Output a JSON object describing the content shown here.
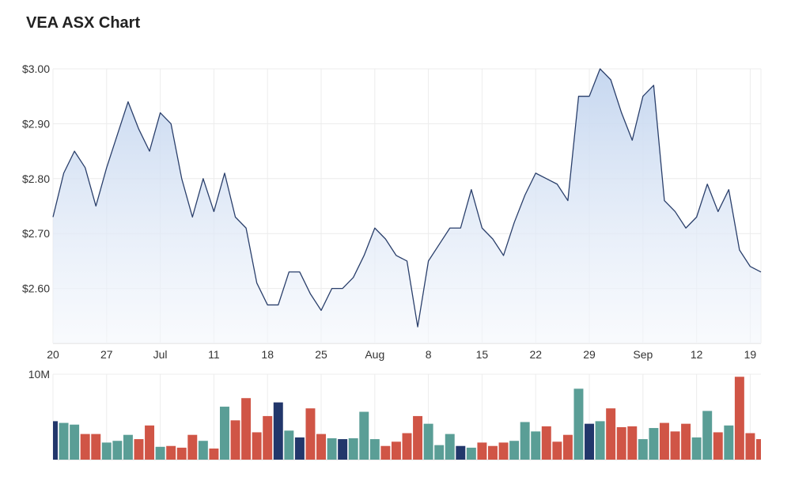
{
  "title": "VEA ASX Chart",
  "colors": {
    "line": "#2a3f6b",
    "area_top": "#c3d5ef",
    "area_bottom": "#f4f7fc",
    "grid": "#ececec",
    "up": "#5a9e96",
    "down": "#d05546",
    "neutral": "#22376b"
  },
  "chart_data": [
    {
      "type": "area",
      "name": "price",
      "ylim": [
        2.5,
        3.0
      ],
      "y_ticks": [
        "$3.00",
        "$2.90",
        "$2.80",
        "$2.70",
        "$2.60"
      ],
      "x_ticks": [
        "20",
        "27",
        "Jul",
        "11",
        "18",
        "25",
        "Aug",
        "8",
        "15",
        "22",
        "29",
        "Sep",
        "12",
        "19"
      ],
      "values": [
        2.73,
        2.81,
        2.85,
        2.82,
        2.75,
        2.82,
        2.88,
        2.94,
        2.89,
        2.85,
        2.92,
        2.9,
        2.8,
        2.73,
        2.8,
        2.74,
        2.81,
        2.73,
        2.71,
        2.61,
        2.57,
        2.57,
        2.63,
        2.63,
        2.59,
        2.56,
        2.6,
        2.6,
        2.62,
        2.66,
        2.71,
        2.69,
        2.66,
        2.65,
        2.53,
        2.65,
        2.68,
        2.71,
        2.71,
        2.78,
        2.71,
        2.69,
        2.66,
        2.72,
        2.77,
        2.81,
        2.8,
        2.79,
        2.76,
        2.95,
        2.95,
        3.0,
        2.98,
        2.92,
        2.87,
        2.95,
        2.97,
        2.76,
        2.74,
        2.71,
        2.73,
        2.79,
        2.74,
        2.78,
        2.67,
        2.64,
        2.63
      ]
    },
    {
      "type": "bar",
      "name": "volume",
      "ylim": [
        0,
        10
      ],
      "y_ticks": [
        "10M"
      ],
      "values": [
        4.5,
        4.3,
        4.1,
        3.0,
        3.0,
        2.0,
        2.2,
        2.9,
        2.4,
        4.0,
        1.5,
        1.6,
        1.4,
        2.9,
        2.2,
        1.3,
        6.2,
        4.6,
        7.2,
        3.2,
        5.1,
        6.7,
        3.4,
        2.6,
        6.0,
        3.0,
        2.5,
        2.4,
        2.5,
        5.6,
        2.4,
        1.6,
        2.1,
        3.1,
        5.1,
        4.2,
        1.7,
        3.0,
        1.6,
        1.4,
        2.0,
        1.6,
        2.0,
        2.2,
        4.4,
        3.3,
        3.9,
        2.1,
        2.9,
        8.3,
        4.2,
        4.5,
        6.0,
        3.8,
        3.9,
        2.4,
        3.7,
        4.3,
        3.3,
        4.2,
        2.6,
        5.7,
        3.2,
        4.0,
        9.7,
        3.1,
        2.4
      ],
      "colors": [
        "neutral",
        "up",
        "up",
        "down",
        "down",
        "up",
        "up",
        "up",
        "down",
        "down",
        "up",
        "down",
        "down",
        "down",
        "up",
        "down",
        "up",
        "down",
        "down",
        "down",
        "down",
        "neutral",
        "up",
        "neutral",
        "down",
        "down",
        "up",
        "neutral",
        "up",
        "up",
        "up",
        "down",
        "down",
        "down",
        "down",
        "up",
        "up",
        "up",
        "neutral",
        "up",
        "down",
        "down",
        "down",
        "up",
        "up",
        "up",
        "down",
        "down",
        "down",
        "up",
        "neutral",
        "up",
        "down",
        "down",
        "down",
        "up",
        "up",
        "down",
        "down",
        "down",
        "up",
        "up",
        "down",
        "up",
        "down",
        "down",
        "down"
      ]
    }
  ]
}
